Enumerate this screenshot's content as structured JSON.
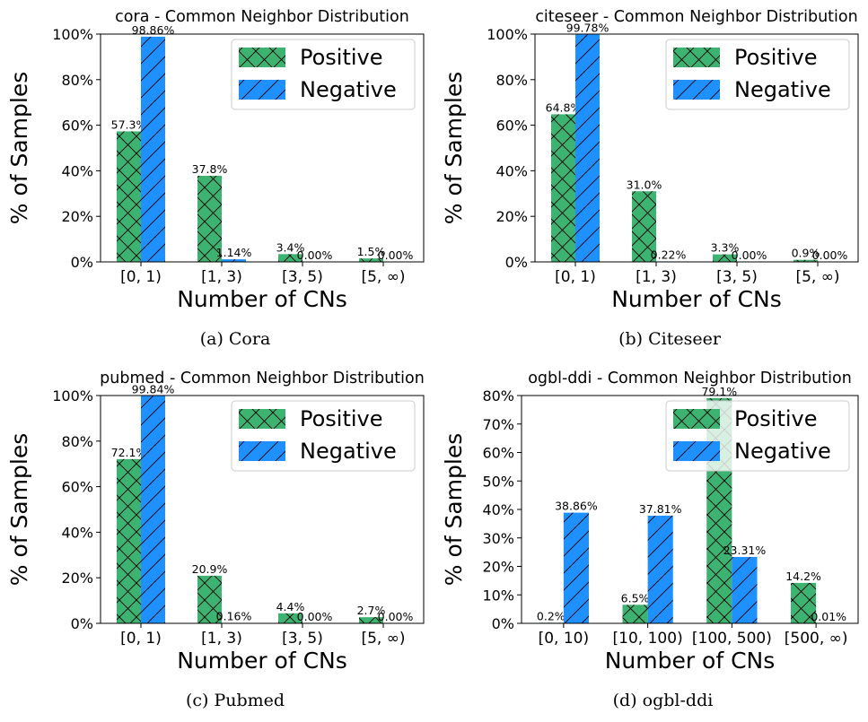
{
  "figure": {
    "colors": {
      "positive": "#3cb371",
      "negative": "#1e90ff"
    },
    "panels": [
      {
        "caption": "(a) Cora",
        "chart_data": {
          "type": "bar",
          "title": "cora - Common Neighbor Distribution",
          "xlabel": "Number of CNs",
          "ylabel": "% of Samples",
          "categories": [
            "[0, 1)",
            "[1, 3)",
            "[3, 5)",
            "[5, ∞)"
          ],
          "ylim": [
            0,
            100
          ],
          "yticks": [
            "0%",
            "20%",
            "40%",
            "60%",
            "80%",
            "100%"
          ],
          "ytick_values": [
            0,
            20,
            40,
            60,
            80,
            100
          ],
          "legend_position": "top-right",
          "series": [
            {
              "name": "Positive",
              "values": [
                57.3,
                37.8,
                3.4,
                1.5
              ],
              "labels": [
                "57.3%",
                "37.8%",
                "3.4%",
                "1.5%"
              ],
              "hatch": "cross"
            },
            {
              "name": "Negative",
              "values": [
                98.86,
                1.14,
                0.0,
                0.0
              ],
              "labels": [
                "98.86%",
                "1.14%",
                "0.00%",
                "0.00%"
              ],
              "hatch": "slash"
            }
          ]
        }
      },
      {
        "caption": "(b) Citeseer",
        "chart_data": {
          "type": "bar",
          "title": "citeseer - Common Neighbor Distribution",
          "xlabel": "Number of CNs",
          "ylabel": "% of Samples",
          "categories": [
            "[0, 1)",
            "[1, 3)",
            "[3, 5)",
            "[5, ∞)"
          ],
          "ylim": [
            0,
            100
          ],
          "yticks": [
            "0%",
            "20%",
            "40%",
            "60%",
            "80%",
            "100%"
          ],
          "ytick_values": [
            0,
            20,
            40,
            60,
            80,
            100
          ],
          "legend_position": "top-right",
          "series": [
            {
              "name": "Positive",
              "values": [
                64.8,
                31.0,
                3.3,
                0.9
              ],
              "labels": [
                "64.8%",
                "31.0%",
                "3.3%",
                "0.9%"
              ],
              "hatch": "cross"
            },
            {
              "name": "Negative",
              "values": [
                99.78,
                0.22,
                0.0,
                0.0
              ],
              "labels": [
                "99.78%",
                "0.22%",
                "0.00%",
                "0.00%"
              ],
              "hatch": "slash"
            }
          ]
        }
      },
      {
        "caption": "(c) Pubmed",
        "chart_data": {
          "type": "bar",
          "title": "pubmed - Common Neighbor Distribution",
          "xlabel": "Number of CNs",
          "ylabel": "% of Samples",
          "categories": [
            "[0, 1)",
            "[1, 3)",
            "[3, 5)",
            "[5, ∞)"
          ],
          "ylim": [
            0,
            100
          ],
          "yticks": [
            "0%",
            "20%",
            "40%",
            "60%",
            "80%",
            "100%"
          ],
          "ytick_values": [
            0,
            20,
            40,
            60,
            80,
            100
          ],
          "legend_position": "top-right",
          "series": [
            {
              "name": "Positive",
              "values": [
                72.1,
                20.9,
                4.4,
                2.7
              ],
              "labels": [
                "72.1%",
                "20.9%",
                "4.4%",
                "2.7%"
              ],
              "hatch": "cross"
            },
            {
              "name": "Negative",
              "values": [
                99.84,
                0.16,
                0.0,
                0.0
              ],
              "labels": [
                "99.84%",
                "0.16%",
                "0.00%",
                "0.00%"
              ],
              "hatch": "slash"
            }
          ]
        }
      },
      {
        "caption": "(d) ogbl-ddi",
        "chart_data": {
          "type": "bar",
          "title": "ogbl-ddi - Common Neighbor Distribution",
          "xlabel": "Number of CNs",
          "ylabel": "% of Samples",
          "categories": [
            "[0, 10)",
            "[10, 100)",
            "[100, 500)",
            "[500, ∞)"
          ],
          "ylim": [
            0,
            80
          ],
          "yticks": [
            "0%",
            "10%",
            "20%",
            "30%",
            "40%",
            "50%",
            "60%",
            "70%",
            "80%"
          ],
          "ytick_values": [
            0,
            10,
            20,
            30,
            40,
            50,
            60,
            70,
            80
          ],
          "legend_position": "top-right",
          "series": [
            {
              "name": "Positive",
              "values": [
                0.2,
                6.5,
                79.1,
                14.2
              ],
              "labels": [
                "0.2%",
                "6.5%",
                "79.1%",
                "14.2%"
              ],
              "hatch": "cross"
            },
            {
              "name": "Negative",
              "values": [
                38.86,
                37.81,
                23.31,
                0.01
              ],
              "labels": [
                "38.86%",
                "37.81%",
                "23.31%",
                "0.01%"
              ],
              "hatch": "slash"
            }
          ]
        }
      }
    ]
  }
}
